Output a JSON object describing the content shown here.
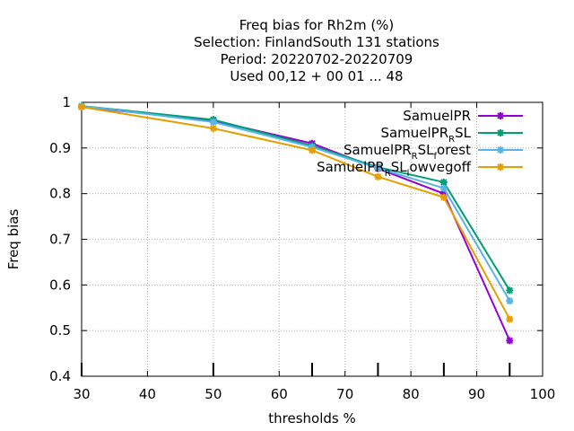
{
  "chart_data": {
    "type": "line",
    "title_lines": [
      "Freq bias  for Rh2m (%)",
      "Selection: FinlandSouth     131 stations",
      "Period: 20220702-20220709",
      "Used  00,12  + 00 01 ... 48"
    ],
    "xlabel": "thresholds %",
    "ylabel": "Freq bias",
    "xlim": [
      30,
      100
    ],
    "ylim": [
      0.4,
      1.0
    ],
    "xticks": [
      30,
      40,
      50,
      60,
      70,
      80,
      90,
      100
    ],
    "yticks": [
      0.4,
      0.5,
      0.6,
      0.7,
      0.8,
      0.9,
      1.0
    ],
    "ytick_labels": [
      "0.4",
      "0.5",
      "0.6",
      "0.7",
      "0.8",
      "0.9",
      "1"
    ],
    "grid": true,
    "legend_position": "top-right",
    "threshold_marks": [
      30,
      50,
      65,
      75,
      85,
      95
    ],
    "series": [
      {
        "name": "SamuelPR",
        "name_parts": [
          {
            "t": "SamuelPR",
            "sub": false
          }
        ],
        "color": "#9400d3",
        "x": [
          30,
          50,
          65,
          75,
          85,
          95
        ],
        "values": [
          0.99,
          0.96,
          0.91,
          0.855,
          0.8,
          0.478
        ]
      },
      {
        "name": "SamuelPR_RSL",
        "name_parts": [
          {
            "t": "SamuelPR",
            "sub": false
          },
          {
            "t": "R",
            "sub": true
          },
          {
            "t": "SL",
            "sub": false
          }
        ],
        "color": "#009e73",
        "x": [
          30,
          50,
          65,
          75,
          85,
          95
        ],
        "values": [
          0.992,
          0.962,
          0.905,
          0.858,
          0.825,
          0.588
        ]
      },
      {
        "name": "SamuelPR_RSL_forest",
        "name_parts": [
          {
            "t": "SamuelPR",
            "sub": false
          },
          {
            "t": "R",
            "sub": true
          },
          {
            "t": "SL",
            "sub": false
          },
          {
            "t": "f",
            "sub": true
          },
          {
            "t": "orest",
            "sub": false
          }
        ],
        "color": "#56b4e9",
        "x": [
          30,
          50,
          65,
          75,
          85,
          95
        ],
        "values": [
          0.992,
          0.957,
          0.902,
          0.856,
          0.812,
          0.565
        ]
      },
      {
        "name": "SamuelPR_RSL_lowvegoff",
        "name_parts": [
          {
            "t": "SamuelPR",
            "sub": false
          },
          {
            "t": "R",
            "sub": true
          },
          {
            "t": "SL",
            "sub": false
          },
          {
            "t": "l",
            "sub": true
          },
          {
            "t": "owvegoff",
            "sub": false
          }
        ],
        "color": "#e69f00",
        "x": [
          30,
          50,
          65,
          75,
          85,
          95
        ],
        "values": [
          0.99,
          0.943,
          0.895,
          0.837,
          0.792,
          0.525
        ]
      }
    ]
  }
}
